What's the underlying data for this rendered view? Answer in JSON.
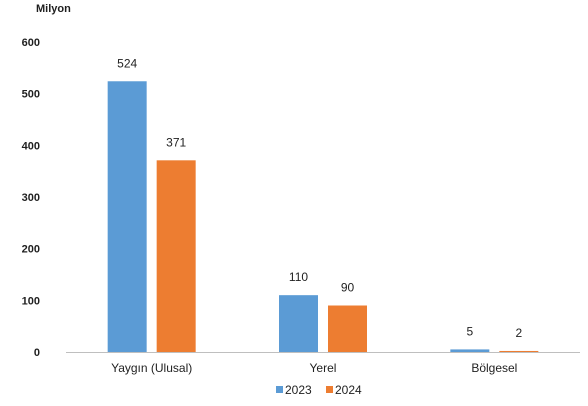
{
  "chart_data": {
    "type": "bar",
    "unit_label": "Milyon",
    "categories": [
      "Yaygın (Ulusal)",
      "Yerel",
      "Bölgesel"
    ],
    "series": [
      {
        "name": "2023",
        "values": [
          524,
          110,
          5
        ],
        "color": "#5B9BD5"
      },
      {
        "name": "2024",
        "values": [
          371,
          90,
          2
        ],
        "color": "#ED7D31"
      }
    ],
    "ylim": [
      0,
      600
    ],
    "yticks": [
      0,
      100,
      200,
      300,
      400,
      500,
      600
    ],
    "grid": false,
    "legend": "bottom-center",
    "data_labels": true
  }
}
